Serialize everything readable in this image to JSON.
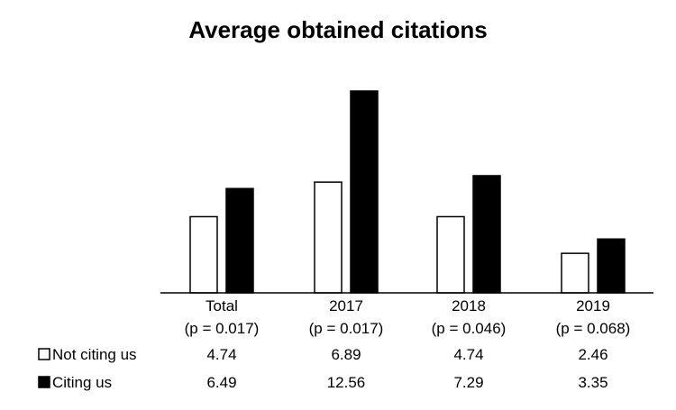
{
  "chart_data": {
    "type": "bar",
    "title": "Average obtained citations",
    "categories": [
      "Total",
      "2017",
      "2018",
      "2019"
    ],
    "category_subtitles": [
      "(p = 0.017)",
      "(p = 0.017)",
      "(p = 0.046)",
      "(p = 0.068)"
    ],
    "series": [
      {
        "name": "Not citing us",
        "values": [
          4.74,
          6.89,
          4.74,
          2.46
        ],
        "color": "#ffffff",
        "stroke": "#000000"
      },
      {
        "name": "Citing us",
        "values": [
          6.49,
          12.56,
          7.29,
          3.35
        ],
        "color": "#000000",
        "stroke": "#000000"
      }
    ],
    "ylim": [
      0,
      12.56
    ],
    "grid": false,
    "legend_placement": "bottom-left",
    "data_table": true
  }
}
